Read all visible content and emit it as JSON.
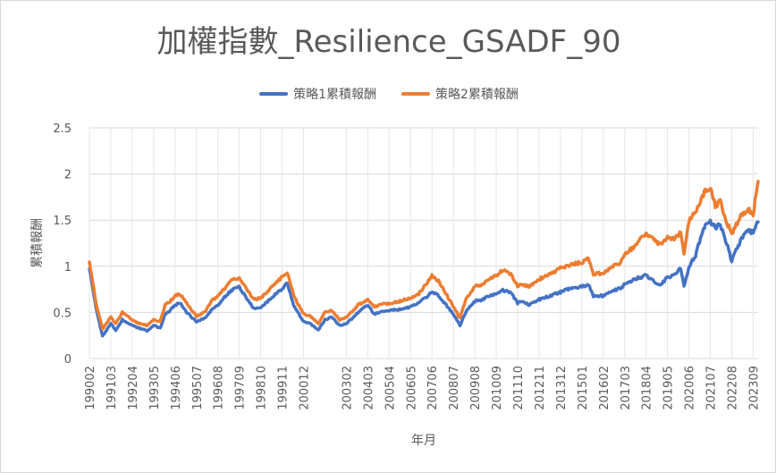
{
  "chart_data": {
    "type": "line",
    "title": "加權指數_Resilience_GSADF_90",
    "xlabel": "年月",
    "ylabel": "累積報酬",
    "ylim": [
      0,
      2.5
    ],
    "y_ticks": [
      "0",
      "0.5",
      "1",
      "1.5",
      "2",
      "2.5"
    ],
    "x_ticks": [
      "199002",
      "199103",
      "199204",
      "199305",
      "199406",
      "199507",
      "199608",
      "199709",
      "199810",
      "199911",
      "200012",
      "200302",
      "200403",
      "200504",
      "200605",
      "200706",
      "200807",
      "200908",
      "201009",
      "201110",
      "201211",
      "201312",
      "201501",
      "201602",
      "201703",
      "201804",
      "201905",
      "202006",
      "202107",
      "202208",
      "202309"
    ],
    "grid": true,
    "legend_position": "top",
    "series": [
      {
        "name": "策略1累積報酬",
        "color": "#4472C4",
        "points": [
          [
            "199002",
            0.98
          ],
          [
            "199006",
            0.55
          ],
          [
            "199010",
            0.24
          ],
          [
            "199103",
            0.38
          ],
          [
            "199106",
            0.3
          ],
          [
            "199110",
            0.42
          ],
          [
            "199204",
            0.36
          ],
          [
            "199208",
            0.33
          ],
          [
            "199301",
            0.3
          ],
          [
            "199305",
            0.36
          ],
          [
            "199309",
            0.33
          ],
          [
            "199312",
            0.48
          ],
          [
            "199403",
            0.52
          ],
          [
            "199406",
            0.58
          ],
          [
            "199409",
            0.6
          ],
          [
            "199501",
            0.5
          ],
          [
            "199507",
            0.4
          ],
          [
            "199512",
            0.44
          ],
          [
            "199604",
            0.52
          ],
          [
            "199608",
            0.58
          ],
          [
            "199612",
            0.66
          ],
          [
            "199704",
            0.74
          ],
          [
            "199709",
            0.78
          ],
          [
            "199801",
            0.66
          ],
          [
            "199806",
            0.54
          ],
          [
            "199810",
            0.56
          ],
          [
            "199901",
            0.6
          ],
          [
            "199906",
            0.68
          ],
          [
            "199911",
            0.75
          ],
          [
            "200002",
            0.82
          ],
          [
            "200006",
            0.58
          ],
          [
            "200012",
            0.4
          ],
          [
            "200104",
            0.38
          ],
          [
            "200109",
            0.31
          ],
          [
            "200201",
            0.42
          ],
          [
            "200205",
            0.45
          ],
          [
            "200210",
            0.36
          ],
          [
            "200302",
            0.38
          ],
          [
            "200306",
            0.44
          ],
          [
            "200309",
            0.5
          ],
          [
            "200403",
            0.58
          ],
          [
            "200407",
            0.48
          ],
          [
            "200410",
            0.5
          ],
          [
            "200504",
            0.52
          ],
          [
            "200510",
            0.53
          ],
          [
            "200605",
            0.56
          ],
          [
            "200610",
            0.6
          ],
          [
            "200706",
            0.72
          ],
          [
            "200710",
            0.68
          ],
          [
            "200807",
            0.48
          ],
          [
            "200811",
            0.36
          ],
          [
            "200903",
            0.52
          ],
          [
            "200908",
            0.62
          ],
          [
            "201001",
            0.64
          ],
          [
            "201004",
            0.68
          ],
          [
            "201009",
            0.7
          ],
          [
            "201101",
            0.74
          ],
          [
            "201106",
            0.72
          ],
          [
            "201110",
            0.6
          ],
          [
            "201201",
            0.62
          ],
          [
            "201205",
            0.58
          ],
          [
            "201211",
            0.64
          ],
          [
            "201306",
            0.68
          ],
          [
            "201312",
            0.72
          ],
          [
            "201406",
            0.76
          ],
          [
            "201501",
            0.78
          ],
          [
            "201505",
            0.8
          ],
          [
            "201508",
            0.68
          ],
          [
            "201602",
            0.68
          ],
          [
            "201606",
            0.72
          ],
          [
            "201612",
            0.76
          ],
          [
            "201703",
            0.8
          ],
          [
            "201709",
            0.86
          ],
          [
            "201801",
            0.88
          ],
          [
            "201804",
            0.9
          ],
          [
            "201810",
            0.82
          ],
          [
            "201901",
            0.8
          ],
          [
            "201905",
            0.88
          ],
          [
            "201909",
            0.9
          ],
          [
            "202001",
            0.98
          ],
          [
            "202003",
            0.78
          ],
          [
            "202006",
            1.0
          ],
          [
            "202010",
            1.12
          ],
          [
            "202101",
            1.3
          ],
          [
            "202104",
            1.46
          ],
          [
            "202107",
            1.48
          ],
          [
            "202110",
            1.42
          ],
          [
            "202201",
            1.45
          ],
          [
            "202205",
            1.25
          ],
          [
            "202208",
            1.05
          ],
          [
            "202210",
            1.15
          ],
          [
            "202302",
            1.3
          ],
          [
            "202306",
            1.4
          ],
          [
            "202309",
            1.36
          ],
          [
            "202312",
            1.48
          ]
        ]
      },
      {
        "name": "策略2累積報酬",
        "color": "#ED7D31",
        "points": [
          [
            "199002",
            1.06
          ],
          [
            "199006",
            0.6
          ],
          [
            "199010",
            0.32
          ],
          [
            "199103",
            0.45
          ],
          [
            "199106",
            0.38
          ],
          [
            "199110",
            0.5
          ],
          [
            "199204",
            0.42
          ],
          [
            "199208",
            0.38
          ],
          [
            "199301",
            0.36
          ],
          [
            "199305",
            0.42
          ],
          [
            "199309",
            0.4
          ],
          [
            "199312",
            0.58
          ],
          [
            "199403",
            0.62
          ],
          [
            "199406",
            0.68
          ],
          [
            "199409",
            0.7
          ],
          [
            "199501",
            0.6
          ],
          [
            "199507",
            0.46
          ],
          [
            "199512",
            0.5
          ],
          [
            "199604",
            0.62
          ],
          [
            "199608",
            0.68
          ],
          [
            "199612",
            0.76
          ],
          [
            "199704",
            0.84
          ],
          [
            "199709",
            0.88
          ],
          [
            "199801",
            0.76
          ],
          [
            "199806",
            0.64
          ],
          [
            "199810",
            0.66
          ],
          [
            "199901",
            0.7
          ],
          [
            "199906",
            0.8
          ],
          [
            "199911",
            0.88
          ],
          [
            "200002",
            0.94
          ],
          [
            "200006",
            0.68
          ],
          [
            "200012",
            0.48
          ],
          [
            "200104",
            0.46
          ],
          [
            "200109",
            0.38
          ],
          [
            "200201",
            0.5
          ],
          [
            "200205",
            0.52
          ],
          [
            "200210",
            0.42
          ],
          [
            "200302",
            0.45
          ],
          [
            "200306",
            0.52
          ],
          [
            "200309",
            0.58
          ],
          [
            "200403",
            0.64
          ],
          [
            "200407",
            0.56
          ],
          [
            "200410",
            0.58
          ],
          [
            "200504",
            0.6
          ],
          [
            "200510",
            0.62
          ],
          [
            "200605",
            0.66
          ],
          [
            "200610",
            0.7
          ],
          [
            "200706",
            0.9
          ],
          [
            "200710",
            0.84
          ],
          [
            "200807",
            0.56
          ],
          [
            "200811",
            0.44
          ],
          [
            "200903",
            0.66
          ],
          [
            "200908",
            0.78
          ],
          [
            "201001",
            0.8
          ],
          [
            "201004",
            0.86
          ],
          [
            "201009",
            0.9
          ],
          [
            "201101",
            0.96
          ],
          [
            "201106",
            0.92
          ],
          [
            "201110",
            0.78
          ],
          [
            "201201",
            0.8
          ],
          [
            "201205",
            0.78
          ],
          [
            "201211",
            0.86
          ],
          [
            "201306",
            0.92
          ],
          [
            "201312",
            0.98
          ],
          [
            "201406",
            1.02
          ],
          [
            "201501",
            1.04
          ],
          [
            "201505",
            1.08
          ],
          [
            "201508",
            0.92
          ],
          [
            "201602",
            0.92
          ],
          [
            "201606",
            0.98
          ],
          [
            "201612",
            1.04
          ],
          [
            "201703",
            1.12
          ],
          [
            "201709",
            1.22
          ],
          [
            "201801",
            1.3
          ],
          [
            "201804",
            1.36
          ],
          [
            "201810",
            1.26
          ],
          [
            "201901",
            1.24
          ],
          [
            "201905",
            1.32
          ],
          [
            "201909",
            1.3
          ],
          [
            "202001",
            1.36
          ],
          [
            "202003",
            1.14
          ],
          [
            "202006",
            1.5
          ],
          [
            "202010",
            1.58
          ],
          [
            "202101",
            1.72
          ],
          [
            "202104",
            1.82
          ],
          [
            "202107",
            1.84
          ],
          [
            "202110",
            1.66
          ],
          [
            "202201",
            1.7
          ],
          [
            "202205",
            1.48
          ],
          [
            "202208",
            1.34
          ],
          [
            "202210",
            1.42
          ],
          [
            "202302",
            1.56
          ],
          [
            "202306",
            1.62
          ],
          [
            "202309",
            1.56
          ],
          [
            "202312",
            1.92
          ]
        ]
      }
    ]
  }
}
